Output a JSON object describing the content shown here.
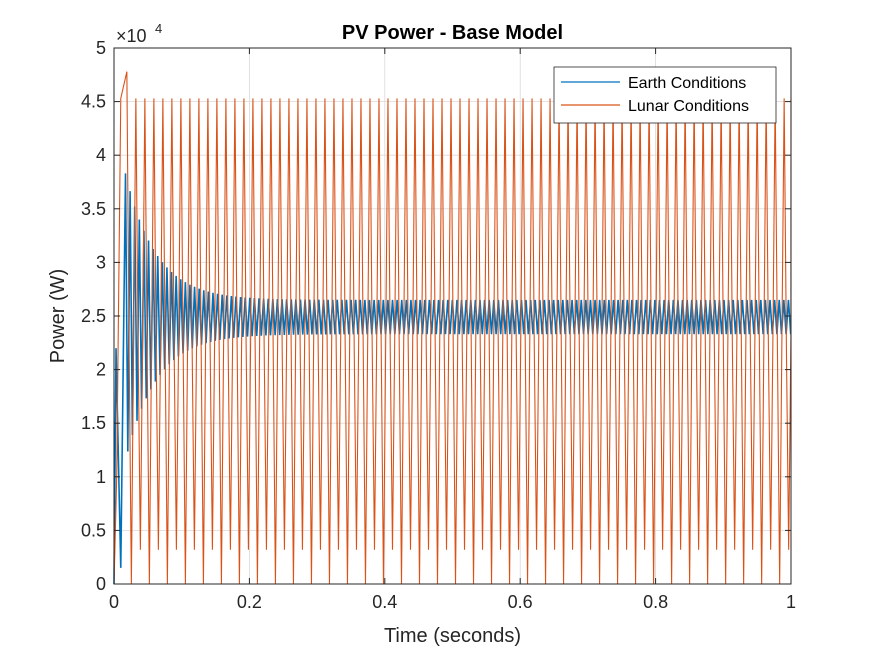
{
  "chart_data": {
    "type": "line",
    "title": "PV Power - Base Model",
    "xlabel": "Time (seconds)",
    "ylabel": "Power (W)",
    "xlim": [
      0,
      1
    ],
    "ylim": [
      0,
      50000
    ],
    "y_exponent_label": "×10",
    "y_exponent_power": "4",
    "x_ticks": [
      0,
      0.2,
      0.4,
      0.6,
      0.8,
      1
    ],
    "x_tick_labels": [
      "0",
      "0.2",
      "0.4",
      "0.6",
      "0.8",
      "1"
    ],
    "y_ticks": [
      0,
      5000,
      10000,
      15000,
      20000,
      25000,
      30000,
      35000,
      40000,
      45000,
      50000
    ],
    "y_tick_labels": [
      "0",
      "0.5",
      "1",
      "1.5",
      "2",
      "2.5",
      "3",
      "3.5",
      "4",
      "4.5",
      "5"
    ],
    "grid": true,
    "legend_position": "top-right",
    "series": [
      {
        "name": "Earth Conditions",
        "color": "#0072BD",
        "initial_value": 0,
        "peak_value": 38300,
        "peak_time": 0.017,
        "settled_low": 23300,
        "settled_high": 26500,
        "oscillation_period": 0.0068,
        "settling_time": 0.3
      },
      {
        "name": "Lunar Conditions",
        "color": "#D95319",
        "initial_value": 0,
        "first_peak_value": 47800,
        "first_peak_time": 0.019,
        "peak_value": 45300,
        "trough_value": 3200,
        "min_value": 0,
        "oscillation_period": 0.0133
      }
    ]
  }
}
